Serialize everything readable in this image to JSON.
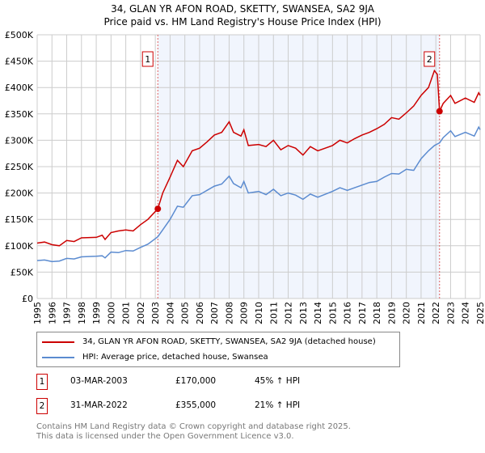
{
  "chart_data": {
    "type": "line",
    "title": "34, GLAN YR AFON ROAD, SKETTY, SWANSEA, SA2 9JA",
    "subtitle": "Price paid vs. HM Land Registry's House Price Index (HPI)",
    "xlim": [
      1995,
      2025
    ],
    "ylim": [
      0,
      500000
    ],
    "x_ticks": [
      "1995",
      "1996",
      "1997",
      "1998",
      "1999",
      "2000",
      "2001",
      "2002",
      "2003",
      "2004",
      "2005",
      "2006",
      "2007",
      "2008",
      "2009",
      "2010",
      "2011",
      "2012",
      "2013",
      "2014",
      "2015",
      "2016",
      "2017",
      "2018",
      "2019",
      "2020",
      "2021",
      "2022",
      "2023",
      "2024",
      "2025"
    ],
    "y_ticks": [
      {
        "v": 0,
        "l": "£0"
      },
      {
        "v": 50000,
        "l": "£50K"
      },
      {
        "v": 100000,
        "l": "£100K"
      },
      {
        "v": 150000,
        "l": "£150K"
      },
      {
        "v": 200000,
        "l": "£200K"
      },
      {
        "v": 250000,
        "l": "£250K"
      },
      {
        "v": 300000,
        "l": "£300K"
      },
      {
        "v": 350000,
        "l": "£350K"
      },
      {
        "v": 400000,
        "l": "£400K"
      },
      {
        "v": 450000,
        "l": "£450K"
      },
      {
        "v": 500000,
        "l": "£500K"
      }
    ],
    "grid": true,
    "series": [
      {
        "name": "34, GLAN YR AFON ROAD, SKETTY, SWANSEA, SA2 9JA (detached house)",
        "color": "#cc0000",
        "x": [
          1995,
          1995.5,
          1996,
          1996.5,
          1997,
          1997.5,
          1998,
          1999,
          1999.4,
          1999.6,
          2000,
          2000.5,
          2001,
          2001.5,
          2002,
          2002.5,
          2003.17,
          2003.5,
          2004,
          2004.5,
          2004.9,
          2005.5,
          2006,
          2006.5,
          2007,
          2007.5,
          2008,
          2008.3,
          2008.8,
          2009,
          2009.3,
          2010,
          2010.5,
          2011,
          2011.5,
          2012,
          2012.5,
          2013,
          2013.5,
          2014,
          2015,
          2015.5,
          2016,
          2016.5,
          2017,
          2017.5,
          2018,
          2018.5,
          2019,
          2019.5,
          2020,
          2020.5,
          2021,
          2021.5,
          2021.9,
          2022.1,
          2022.25,
          2022.5,
          2023,
          2023.3,
          2024,
          2024.6,
          2024.9,
          2025
        ],
        "y": [
          105000,
          107000,
          102000,
          100000,
          110000,
          108000,
          115000,
          116000,
          120000,
          112000,
          125000,
          128000,
          130000,
          128000,
          140000,
          150000,
          170000,
          200000,
          230000,
          262000,
          250000,
          280000,
          285000,
          297000,
          310000,
          315000,
          335000,
          315000,
          308000,
          320000,
          290000,
          292000,
          288000,
          300000,
          282000,
          290000,
          285000,
          272000,
          288000,
          280000,
          290000,
          300000,
          295000,
          303000,
          310000,
          315000,
          322000,
          330000,
          343000,
          340000,
          352000,
          365000,
          385000,
          400000,
          432000,
          425000,
          355000,
          370000,
          385000,
          370000,
          380000,
          372000,
          390000,
          385000
        ]
      },
      {
        "name": "HPI: Average price, detached house, Swansea",
        "color": "#5b8bd0",
        "x": [
          1995,
          1995.5,
          1996,
          1996.5,
          1997,
          1997.5,
          1998,
          1999,
          1999.4,
          1999.6,
          2000,
          2000.5,
          2001,
          2001.5,
          2002,
          2002.5,
          2003.17,
          2003.5,
          2004,
          2004.5,
          2004.9,
          2005.5,
          2006,
          2006.5,
          2007,
          2007.5,
          2008,
          2008.3,
          2008.8,
          2009,
          2009.3,
          2010,
          2010.5,
          2011,
          2011.5,
          2012,
          2012.5,
          2013,
          2013.5,
          2014,
          2015,
          2015.5,
          2016,
          2016.5,
          2017,
          2017.5,
          2018,
          2018.5,
          2019,
          2019.5,
          2020,
          2020.5,
          2021,
          2021.5,
          2021.9,
          2022.1,
          2022.25,
          2022.5,
          2023,
          2023.3,
          2024,
          2024.6,
          2024.9,
          2025
        ],
        "y": [
          72000,
          73000,
          70000,
          71000,
          76000,
          75000,
          79000,
          80000,
          81000,
          77000,
          88000,
          87000,
          91000,
          90000,
          97000,
          103000,
          117000,
          130000,
          150000,
          175000,
          173000,
          195000,
          197000,
          205000,
          213000,
          217000,
          232000,
          218000,
          210000,
          222000,
          200000,
          203000,
          197000,
          207000,
          195000,
          200000,
          196000,
          188000,
          198000,
          192000,
          203000,
          210000,
          205000,
          210000,
          215000,
          220000,
          222000,
          230000,
          237000,
          236000,
          245000,
          243000,
          265000,
          280000,
          290000,
          293000,
          295000,
          305000,
          318000,
          307000,
          315000,
          308000,
          325000,
          320000
        ]
      }
    ],
    "shaded_range": [
      2003.17,
      2022.25
    ],
    "annotations": [
      {
        "label": "1",
        "x": 2003.17,
        "y": 170000
      },
      {
        "label": "2",
        "x": 2022.25,
        "y": 355000
      }
    ],
    "legend_placement": "bottom"
  },
  "transactions": [
    {
      "num": "1",
      "date": "03-MAR-2003",
      "price": "£170,000",
      "hpi": "45% ↑ HPI"
    },
    {
      "num": "2",
      "date": "31-MAR-2022",
      "price": "£355,000",
      "hpi": "21% ↑ HPI"
    }
  ],
  "footer": {
    "line1": "Contains HM Land Registry data © Crown copyright and database right 2025.",
    "line2": "This data is licensed under the Open Government Licence v3.0."
  }
}
